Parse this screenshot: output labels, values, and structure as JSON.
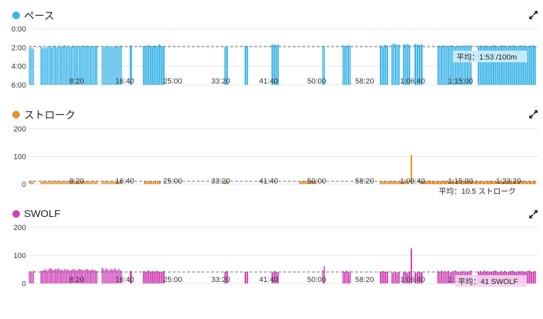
{
  "colors": {
    "pace": "#3bb4e8",
    "stroke": "#e8902e",
    "swolf": "#d040b8",
    "grid": "#e5e5e5",
    "avg_line": "#666666"
  },
  "icons": {
    "expand": "expand-icon"
  },
  "x_ticks": [
    "8:20",
    "16:40",
    "25:00",
    "33:20",
    "41:40",
    "50:00",
    "58:20",
    "1:06:40",
    "1:15:00",
    "1:23:20"
  ],
  "panels": {
    "pace": {
      "title": "ペース",
      "y_ticks": [
        "0:00",
        "2:00",
        "4:00",
        "6:00"
      ],
      "average_label": "平均：1:53 /100m"
    },
    "stroke": {
      "title": "ストローク",
      "y_ticks": [
        "200",
        "100",
        "0"
      ],
      "average_label": "平均：10.5 ストローク"
    },
    "swolf": {
      "title": "SWOLF",
      "y_ticks": [
        "200",
        "100",
        "0"
      ],
      "average_label": "平均：41 SWOLF"
    }
  },
  "chart_data": [
    {
      "type": "bar",
      "name_ref": "pace",
      "x_unit": "elapsed time",
      "ylim_seconds_per_100m": [
        0,
        360
      ],
      "y_inverted": true,
      "average_seconds": 113,
      "segments": [
        {
          "start": "0:00",
          "end": "0:44",
          "values": [
            120,
            125,
            118,
            130
          ]
        },
        {
          "start": "2:02",
          "end": "12:00",
          "values": [
            112,
            125,
            118,
            125,
            115,
            118,
            110,
            120,
            112,
            110,
            118,
            116,
            108,
            115,
            112,
            105,
            115,
            110,
            118,
            112,
            108,
            114,
            110,
            116,
            112,
            110,
            115,
            105,
            112,
            108,
            114,
            110,
            115,
            112,
            108,
            110
          ]
        },
        {
          "start": "12:40",
          "end": "16:00",
          "values": [
            120,
            115,
            112,
            118,
            110,
            112,
            115,
            120,
            118,
            110,
            112,
            115,
            113,
            110,
            108
          ]
        },
        {
          "start": "17:33",
          "end": "18:00",
          "values": [
            108
          ]
        },
        {
          "start": "19:50",
          "end": "23:40",
          "values": [
            110,
            112,
            105,
            115,
            110,
            108,
            112,
            100,
            110,
            112
          ]
        },
        {
          "start": "34:00",
          "end": "34:40",
          "values": [
            115,
            118
          ]
        },
        {
          "start": "37:30",
          "end": "38:10",
          "values": [
            110,
            112
          ]
        },
        {
          "start": "42:10",
          "end": "43:30",
          "values": [
            100,
            102,
            105,
            100
          ]
        },
        {
          "start": "51:00",
          "end": "51:30",
          "values": [
            110,
            112
          ]
        },
        {
          "start": "54:30",
          "end": "56:00",
          "values": [
            105,
            108,
            110,
            104,
            108
          ]
        },
        {
          "start": "61:00",
          "end": "62:30",
          "values": [
            108,
            112,
            104,
            108
          ]
        },
        {
          "start": "63:00",
          "end": "64:30",
          "values": [
            100,
            95,
            98,
            104,
            100
          ]
        },
        {
          "start": "65:00",
          "end": "66:20",
          "values": [
            100,
            102,
            98,
            104
          ]
        },
        {
          "start": "67:00",
          "end": "68:30",
          "values": [
            98,
            100,
            104,
            100
          ]
        },
        {
          "start": "71:00",
          "end": "77:00",
          "values": [
            110,
            108,
            112,
            105,
            108,
            110,
            112,
            106,
            108,
            110,
            112,
            115,
            108,
            110,
            112,
            106,
            108,
            110,
            105,
            108
          ]
        },
        {
          "start": "78:00",
          "end": "88:10",
          "values": [
            110,
            108,
            112,
            106,
            110,
            108,
            112,
            110,
            106,
            108,
            112,
            110,
            108,
            106,
            110,
            112,
            108,
            110,
            106,
            108,
            110,
            112,
            108,
            106,
            110,
            108,
            112,
            110,
            108,
            106,
            110
          ]
        }
      ]
    },
    {
      "type": "bar",
      "name_ref": "stroke",
      "x_unit": "elapsed time",
      "ylim": [
        0,
        200
      ],
      "average": 10.5,
      "segments": [
        {
          "start": "0:00",
          "end": "0:44",
          "values": [
            10,
            11,
            10,
            12
          ]
        },
        {
          "start": "2:02",
          "end": "12:00",
          "values": [
            11,
            10,
            12,
            11,
            10,
            13,
            12,
            11,
            10,
            12,
            11,
            10,
            12,
            11,
            10,
            11,
            12,
            10,
            11,
            12,
            10,
            11,
            12,
            11,
            10,
            12,
            11,
            10,
            11,
            12,
            10,
            11,
            12,
            11,
            10,
            12
          ]
        },
        {
          "start": "12:40",
          "end": "16:00",
          "values": [
            12,
            10,
            11,
            13,
            11,
            10,
            12,
            11,
            10,
            11,
            12,
            11,
            10,
            12,
            11
          ]
        },
        {
          "start": "20:00",
          "end": "23:00",
          "values": [
            11,
            10,
            12,
            11,
            10,
            11,
            12,
            10
          ]
        },
        {
          "start": "34:00",
          "end": "34:40",
          "values": [
            10,
            11
          ]
        },
        {
          "start": "47:00",
          "end": "50:00",
          "values": [
            10,
            11,
            12,
            11,
            10,
            11,
            12,
            10,
            11
          ]
        },
        {
          "start": "61:00",
          "end": "66:00",
          "values": [
            10,
            11,
            12,
            10,
            11,
            10,
            12,
            11,
            10,
            11,
            12,
            10,
            11,
            10,
            12
          ]
        },
        {
          "start": "66:20",
          "end": "66:40",
          "values": [
            105
          ]
        },
        {
          "start": "68:00",
          "end": "88:10",
          "values": [
            10,
            11,
            12,
            10,
            11,
            10,
            12,
            11,
            10,
            11,
            12,
            10,
            11,
            10,
            12,
            11,
            10,
            11,
            12,
            10,
            11,
            10,
            12,
            11,
            10,
            11,
            12,
            10,
            11,
            10
          ]
        }
      ]
    },
    {
      "type": "bar",
      "name_ref": "swolf",
      "x_unit": "elapsed time",
      "ylim": [
        0,
        200
      ],
      "average": 41,
      "segments": [
        {
          "start": "0:00",
          "end": "0:44",
          "values": [
            42,
            44,
            40,
            46
          ]
        },
        {
          "start": "2:02",
          "end": "12:00",
          "values": [
            44,
            46,
            48,
            50,
            45,
            52,
            55,
            50,
            48,
            52,
            50,
            54,
            48,
            50,
            46,
            52,
            48,
            50,
            45,
            48,
            52,
            50,
            46,
            48,
            52,
            50,
            48,
            46,
            50,
            52,
            48,
            46,
            50,
            48,
            46,
            44
          ]
        },
        {
          "start": "12:40",
          "end": "16:00",
          "values": [
            56,
            52,
            48,
            55,
            50,
            46,
            52,
            50,
            48,
            54,
            50,
            46,
            52,
            48,
            45
          ]
        },
        {
          "start": "17:33",
          "end": "18:00",
          "values": [
            44
          ]
        },
        {
          "start": "19:50",
          "end": "23:40",
          "values": [
            44,
            42,
            46,
            40,
            44,
            42,
            45,
            40,
            42,
            44
          ]
        },
        {
          "start": "34:00",
          "end": "34:40",
          "values": [
            42,
            44
          ]
        },
        {
          "start": "37:30",
          "end": "38:10",
          "values": [
            40,
            42
          ]
        },
        {
          "start": "42:10",
          "end": "43:30",
          "values": [
            40,
            44,
            42,
            40
          ]
        },
        {
          "start": "51:00",
          "end": "51:30",
          "values": [
            48,
            62
          ]
        },
        {
          "start": "54:30",
          "end": "56:00",
          "values": [
            44,
            42,
            45,
            40,
            43
          ]
        },
        {
          "start": "61:00",
          "end": "62:30",
          "values": [
            42,
            44,
            40,
            42
          ]
        },
        {
          "start": "63:00",
          "end": "64:30",
          "values": [
            40,
            38,
            42,
            40,
            41
          ]
        },
        {
          "start": "65:00",
          "end": "66:20",
          "values": [
            40,
            42,
            38,
            42
          ]
        },
        {
          "start": "66:20",
          "end": "66:40",
          "values": [
            125
          ]
        },
        {
          "start": "67:00",
          "end": "68:30",
          "values": [
            38,
            40,
            42,
            40
          ]
        },
        {
          "start": "71:00",
          "end": "77:00",
          "values": [
            44,
            42,
            46,
            40,
            44,
            42,
            45,
            40,
            42,
            44,
            46,
            42,
            40,
            44,
            42,
            45,
            40,
            42,
            44,
            46
          ]
        },
        {
          "start": "78:00",
          "end": "88:10",
          "values": [
            42,
            44,
            40,
            46,
            42,
            44,
            40,
            42,
            44,
            46,
            42,
            40,
            44,
            42,
            45,
            40,
            42,
            44,
            46,
            42,
            40,
            44,
            42,
            45,
            40,
            42,
            44,
            46,
            42,
            40,
            44
          ]
        }
      ]
    }
  ]
}
